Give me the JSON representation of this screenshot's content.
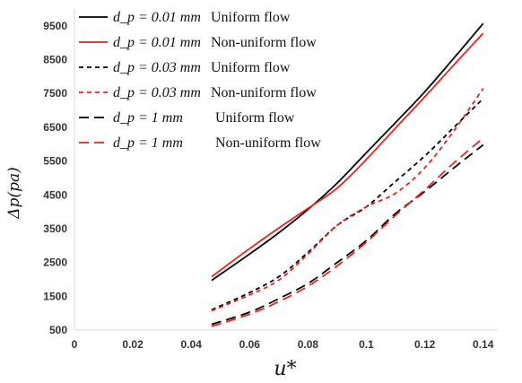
{
  "chart_data": {
    "type": "line",
    "title": "",
    "xlabel": "u*",
    "ylabel": "Δp(pa)",
    "xlim": [
      0,
      0.145
    ],
    "ylim": [
      500,
      10000
    ],
    "x_ticks": [
      0,
      0.02,
      0.04,
      0.06,
      0.08,
      0.1,
      0.12,
      0.14
    ],
    "x_tick_labels": [
      "0",
      "0.02",
      "0.04",
      "0.06",
      "0.08",
      "0.1",
      "0.12",
      "0.14"
    ],
    "y_ticks": [
      500,
      1500,
      2500,
      3500,
      4500,
      5500,
      6500,
      7500,
      8500,
      9500
    ],
    "y_tick_labels": [
      "500",
      "1500",
      "2500",
      "3500",
      "4500",
      "5500",
      "6500",
      "7500",
      "8500",
      "9500"
    ],
    "grid": false,
    "legend_position": "top-left",
    "series": [
      {
        "name": "d_p = 0.01 mm  Uniform flow",
        "legend_math": "d_p = 0.01 mm",
        "legend_text": "Uniform flow",
        "color": "#000000",
        "dash": "solid",
        "x": [
          0.047,
          0.06,
          0.07,
          0.08,
          0.09,
          0.1,
          0.11,
          0.12,
          0.13,
          0.14
        ],
        "y": [
          1970,
          2750,
          3380,
          4070,
          4850,
          5750,
          6640,
          7550,
          8550,
          9570
        ]
      },
      {
        "name": "d_p = 0.01 mm  Non-uniform flow",
        "legend_math": "d_p = 0.01 mm",
        "legend_text": "Non-uniform flow",
        "color": "#e8231b",
        "dash": "solid",
        "x": [
          0.047,
          0.06,
          0.07,
          0.08,
          0.09,
          0.1,
          0.11,
          0.12,
          0.13,
          0.14
        ],
        "y": [
          2080,
          2910,
          3520,
          4100,
          4700,
          5550,
          6480,
          7400,
          8350,
          9280
        ]
      },
      {
        "name": "d_p = 0.03 mm  Uniform flow",
        "legend_math": "d_p = 0.03 mm",
        "legend_text": "Uniform flow",
        "color": "#000000",
        "dash": "short",
        "x": [
          0.047,
          0.06,
          0.07,
          0.08,
          0.09,
          0.1,
          0.11,
          0.12,
          0.13,
          0.14
        ],
        "y": [
          1100,
          1610,
          2080,
          2800,
          3600,
          4150,
          4900,
          5650,
          6500,
          7350
        ]
      },
      {
        "name": "d_p = 0.03 mm  Non-uniform flow",
        "legend_math": "d_p = 0.03 mm",
        "legend_text": "Non-uniform flow",
        "color": "#e8231b",
        "dash": "short",
        "x": [
          0.047,
          0.06,
          0.07,
          0.08,
          0.09,
          0.1,
          0.11,
          0.12,
          0.13,
          0.14
        ],
        "y": [
          1070,
          1540,
          1980,
          2750,
          3600,
          4150,
          4550,
          5300,
          6400,
          7650
        ]
      },
      {
        "name": "d_p = 1 mm  Uniform flow",
        "legend_math": "d_p = 1 mm",
        "legend_text": "Uniform flow",
        "color": "#000000",
        "dash": "long",
        "x": [
          0.047,
          0.06,
          0.07,
          0.08,
          0.09,
          0.1,
          0.11,
          0.12,
          0.13,
          0.14
        ],
        "y": [
          670,
          1030,
          1430,
          1880,
          2500,
          3150,
          3950,
          4600,
          5300,
          5980
        ]
      },
      {
        "name": "d_p = 1 mm  Non-uniform flow",
        "legend_math": "d_p = 1 mm",
        "legend_text": "Non-uniform flow",
        "color": "#e8231b",
        "dash": "long",
        "x": [
          0.047,
          0.06,
          0.07,
          0.08,
          0.09,
          0.1,
          0.11,
          0.12,
          0.13,
          0.14
        ],
        "y": [
          610,
          970,
          1340,
          1800,
          2400,
          3100,
          3900,
          4650,
          5450,
          6180
        ]
      }
    ]
  }
}
